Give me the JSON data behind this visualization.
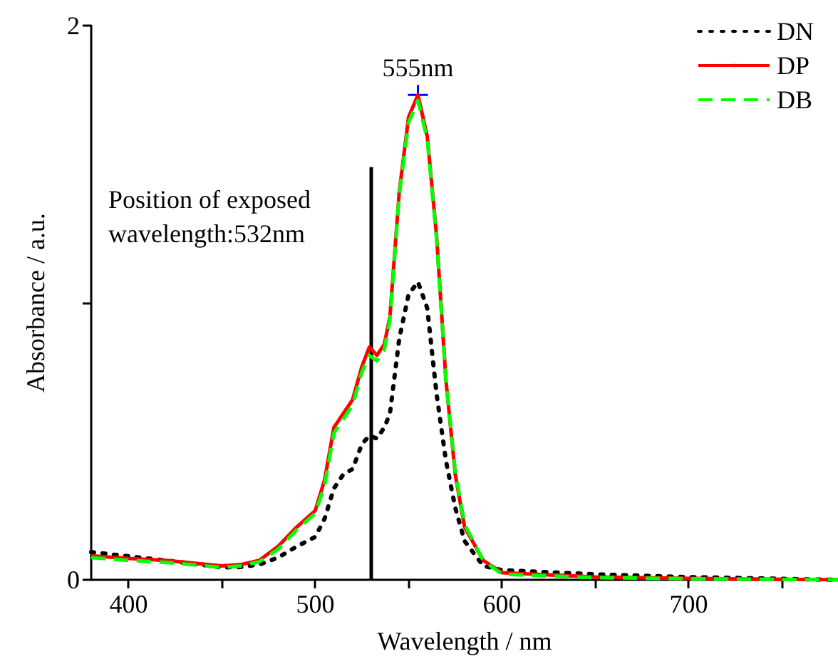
{
  "chart_data": {
    "type": "line",
    "xlabel": "Wavelength / nm",
    "ylabel": "Absorbance / a.u.",
    "x": [
      380,
      400,
      420,
      450,
      460,
      470,
      480,
      490,
      500,
      505,
      510,
      515,
      520,
      525,
      529,
      533,
      537,
      540,
      545,
      550,
      555,
      560,
      565,
      570,
      575,
      580,
      590,
      600,
      650,
      700,
      780
    ],
    "series": [
      {
        "name": "DN",
        "color": "#000000",
        "line_style": "dotted",
        "values": [
          0.1,
          0.085,
          0.07,
          0.045,
          0.046,
          0.055,
          0.08,
          0.12,
          0.155,
          0.22,
          0.33,
          0.38,
          0.4,
          0.49,
          0.52,
          0.51,
          0.55,
          0.6,
          0.87,
          1.03,
          1.075,
          0.98,
          0.67,
          0.43,
          0.26,
          0.14,
          0.05,
          0.035,
          0.02,
          0.01,
          0
        ]
      },
      {
        "name": "DP",
        "color": "#ff0000",
        "line_style": "solid",
        "values": [
          0.087,
          0.077,
          0.07,
          0.05,
          0.055,
          0.07,
          0.12,
          0.19,
          0.25,
          0.36,
          0.55,
          0.6,
          0.65,
          0.77,
          0.84,
          0.81,
          0.85,
          0.95,
          1.4,
          1.67,
          1.75,
          1.6,
          1.24,
          0.72,
          0.38,
          0.19,
          0.07,
          0.026,
          0.01,
          0.005,
          0
        ]
      },
      {
        "name": "DB",
        "color": "#00ff00",
        "line_style": "dashed",
        "values": [
          0.08,
          0.07,
          0.063,
          0.045,
          0.05,
          0.065,
          0.11,
          0.18,
          0.24,
          0.34,
          0.53,
          0.58,
          0.63,
          0.75,
          0.81,
          0.79,
          0.83,
          0.94,
          1.39,
          1.65,
          1.73,
          1.59,
          1.23,
          0.72,
          0.39,
          0.2,
          0.07,
          0.02,
          0.008,
          0.004,
          0
        ]
      },
      {
        "color": "#000000",
        "line_style": "solid",
        "x": [
          530,
          530
        ],
        "values": [
          0,
          1.49
        ]
      }
    ],
    "xlim": [
      380,
      780
    ],
    "xticks": [
      400,
      {
        "value": 450,
        "label": null
      },
      500,
      {
        "value": 550,
        "label": null
      },
      600,
      {
        "value": 650,
        "label": null
      },
      700,
      {
        "value": 750,
        "label": null
      }
    ],
    "ylim": [
      0,
      2
    ],
    "yticks": [
      0,
      {
        "value": 1,
        "label": null
      },
      2
    ],
    "annotations": [
      "Position of exposed wavelength:532nm",
      {
        "text": "555nm",
        "x": 555,
        "y": 1.75
      }
    ],
    "grid": false,
    "legend": "top right",
    "marker": "none"
  }
}
